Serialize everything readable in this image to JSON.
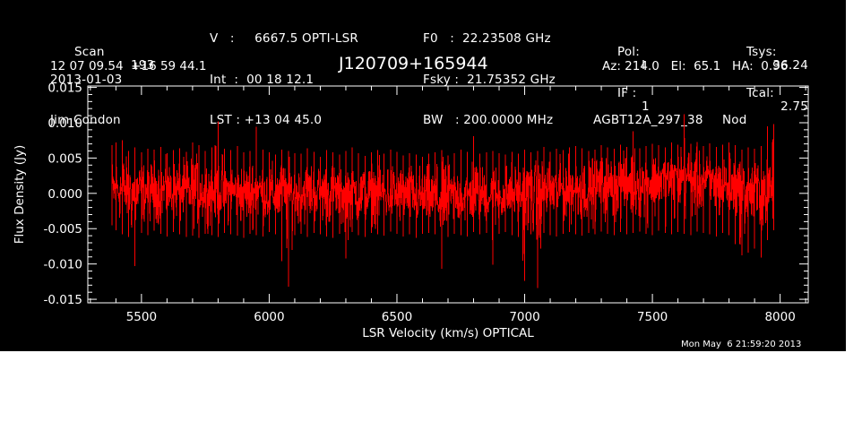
{
  "header": {
    "scan_label": "Scan",
    "scan_number": "193",
    "date": "2013-01-03",
    "observer": "Jim Condon",
    "velocity_line": "V   :     6667.5 OPTI-LSR",
    "int_line": "Int  :  00 18 12.1",
    "lst_line": "LST : +13 04 45.0",
    "f0_line": "F0   :  22.23508 GHz",
    "fsky_line": "Fsky :  21.75352 GHz",
    "bw_line": "BW   : 200.0000 MHz",
    "pol_label": "Pol:",
    "pol_value": "I",
    "if_label": "IF :",
    "if_value": "1",
    "project": "AGBT12A_297_38",
    "tsys_label": "Tsys:",
    "tsys_value": "36.24",
    "tcal_label": "Tcal:",
    "tcal_value": "2.75",
    "procedure": "Nod",
    "coordinates": "12 07 09.54  +16 59 44.1",
    "source": "J120709+165944",
    "az_el_ha": "Az: 214.0   El:  65.1   HA:  0.96",
    "timestamp": "Mon May  6 21:59:20 2013"
  },
  "colors": {
    "background": "#000000",
    "axes": "#ffffff",
    "trace": "#ff0000"
  },
  "chart_data": {
    "type": "line",
    "xlabel": "LSR Velocity (km/s) OPTICAL",
    "ylabel": "Flux Density (Jy)",
    "xlim": [
      5290,
      8110
    ],
    "ylim": [
      -0.0155,
      0.0152
    ],
    "x_ticks": [
      5500,
      6000,
      6500,
      7000,
      7500,
      8000
    ],
    "x_tick_labels": [
      "5500",
      "6000",
      "6500",
      "7000",
      "7500",
      "8000"
    ],
    "y_ticks": [
      -0.015,
      -0.01,
      -0.005,
      0.0,
      0.005,
      0.01,
      0.015
    ],
    "y_tick_labels": [
      "-0.015",
      "-0.010",
      "-0.005",
      "0.000",
      "0.005",
      "0.010",
      "0.015"
    ],
    "grid": false,
    "series": [
      {
        "color": "#ff0000",
        "x": [
          5385,
          5400,
          5425,
          5450,
          5475,
          5500,
          5525,
          5550,
          5575,
          5600,
          5625,
          5650,
          5675,
          5700,
          5725,
          5750,
          5775,
          5800,
          5825,
          5850,
          5875,
          5900,
          5925,
          5950,
          5975,
          6000,
          6025,
          6050,
          6075,
          6100,
          6125,
          6150,
          6175,
          6200,
          6225,
          6250,
          6275,
          6300,
          6325,
          6350,
          6375,
          6400,
          6425,
          6450,
          6475,
          6500,
          6525,
          6550,
          6575,
          6600,
          6625,
          6650,
          6675,
          6700,
          6725,
          6750,
          6775,
          6800,
          6825,
          6850,
          6875,
          6900,
          6925,
          6950,
          6975,
          7000,
          7025,
          7050,
          7075,
          7100,
          7125,
          7150,
          7175,
          7200,
          7225,
          7250,
          7275,
          7300,
          7325,
          7350,
          7375,
          7400,
          7425,
          7450,
          7475,
          7500,
          7525,
          7550,
          7575,
          7600,
          7625,
          7650,
          7675,
          7700,
          7725,
          7750,
          7775,
          7800,
          7825,
          7850,
          7875,
          7900,
          7925,
          7950,
          7975
        ],
        "upper": [
          0.0068,
          0.0072,
          0.0075,
          0.006,
          0.0065,
          0.0058,
          0.0063,
          0.0062,
          0.0066,
          0.0057,
          0.0061,
          0.0064,
          0.0059,
          0.0072,
          0.0068,
          0.006,
          0.0065,
          0.0102,
          0.0063,
          0.0061,
          0.0067,
          0.0058,
          0.006,
          0.0094,
          0.0062,
          0.0058,
          0.0055,
          0.0062,
          0.006,
          0.0057,
          0.0056,
          0.0064,
          0.0059,
          0.0052,
          0.0061,
          0.0058,
          0.0055,
          0.006,
          0.0065,
          0.0057,
          0.0053,
          0.0058,
          0.0061,
          0.0056,
          0.0062,
          0.0059,
          0.0054,
          0.0057,
          0.0055,
          0.0052,
          0.0056,
          0.0058,
          0.0061,
          0.0054,
          0.0057,
          0.0062,
          0.0059,
          0.0081,
          0.0056,
          0.0058,
          0.006,
          0.0057,
          0.0055,
          0.0059,
          0.0056,
          0.0062,
          0.0058,
          0.006,
          0.0066,
          0.0059,
          0.0063,
          0.0061,
          0.0065,
          0.0067,
          0.0064,
          0.006,
          0.0062,
          0.0068,
          0.0065,
          0.0063,
          0.0069,
          0.0066,
          0.0088,
          0.0064,
          0.0067,
          0.007,
          0.0068,
          0.0065,
          0.0072,
          0.0069,
          0.0112,
          0.007,
          0.0073,
          0.0067,
          0.0071,
          0.0066,
          0.0069,
          0.0072,
          0.0068,
          0.0062,
          0.0065,
          0.0063,
          0.0067,
          0.0095,
          0.0098
        ],
        "lower": [
          -0.0045,
          -0.0052,
          -0.0058,
          -0.0062,
          -0.0103,
          -0.0056,
          -0.0059,
          -0.0053,
          -0.0057,
          -0.0061,
          -0.0055,
          -0.0058,
          -0.0062,
          -0.006,
          -0.0063,
          -0.0057,
          -0.0059,
          -0.0062,
          -0.0056,
          -0.0058,
          -0.006,
          -0.0063,
          -0.0057,
          -0.0059,
          -0.0061,
          -0.0055,
          -0.0058,
          -0.0096,
          -0.0132,
          -0.0059,
          -0.0057,
          -0.0062,
          -0.0056,
          -0.0058,
          -0.0061,
          -0.0063,
          -0.0057,
          -0.0092,
          -0.0055,
          -0.0059,
          -0.0062,
          -0.0056,
          -0.0058,
          -0.006,
          -0.0054,
          -0.0057,
          -0.0061,
          -0.0058,
          -0.0063,
          -0.0057,
          -0.0056,
          -0.0058,
          -0.0107,
          -0.0062,
          -0.0057,
          -0.0059,
          -0.0061,
          -0.0055,
          -0.0058,
          -0.0056,
          -0.0101,
          -0.0057,
          -0.0055,
          -0.0059,
          -0.0062,
          -0.0124,
          -0.0058,
          -0.0134,
          -0.0056,
          -0.0059,
          -0.0061,
          -0.0057,
          -0.0055,
          -0.0058,
          -0.006,
          -0.0056,
          -0.0058,
          -0.0054,
          -0.0057,
          -0.0059,
          -0.0055,
          -0.0058,
          -0.0056,
          -0.0054,
          -0.0057,
          -0.0059,
          -0.0053,
          -0.0056,
          -0.0058,
          -0.0055,
          -0.0057,
          -0.0059,
          -0.0054,
          -0.0056,
          -0.0058,
          -0.0061,
          -0.0056,
          -0.0059,
          -0.0072,
          -0.0088,
          -0.0084,
          -0.0078,
          -0.0091,
          -0.0066,
          -0.0052
        ],
        "baseline": [
          0.0,
          0.0005,
          0.0006,
          0.0004,
          0.0003,
          0.0004,
          0.0005,
          0.0004,
          0.0006,
          0.0003,
          0.0002,
          0.0004,
          0.0003,
          0.0005,
          0.0006,
          0.0004,
          0.0003,
          0.0005,
          0.0004,
          0.0002,
          0.0003,
          0.0001,
          0.0003,
          0.0002,
          0.0001,
          -0.0002,
          -0.0001,
          0.0001,
          0.0002,
          0.0,
          0.0001,
          0.0002,
          0.0003,
          0.0001,
          0.0,
          -0.0001,
          0.0001,
          0.0002,
          0.0,
          -0.0001,
          -0.0002,
          -0.0001,
          0.0,
          -0.0002,
          -0.0001,
          -0.0003,
          -0.0002,
          -0.0004,
          -0.0005,
          -0.0006,
          -0.0008,
          -0.0009,
          -0.0007,
          -0.0006,
          -0.0008,
          -0.0007,
          -0.0005,
          -0.0003,
          -0.0002,
          -0.0001,
          -0.0002,
          -0.0003,
          -0.0001,
          0.0,
          0.0001,
          0.0002,
          0.0003,
          0.0004,
          0.0003,
          0.0005,
          0.0006,
          0.0007,
          0.0009,
          0.001,
          0.0011,
          0.001,
          0.0012,
          0.0014,
          0.0013,
          0.0015,
          0.0016,
          0.0018,
          0.0017,
          0.0016,
          0.0018,
          0.0019,
          0.0021,
          0.0022,
          0.0023,
          0.0025,
          0.0024,
          0.0023,
          0.0021,
          0.002,
          0.0018,
          0.0016,
          0.0014,
          0.0012,
          0.001,
          0.0008,
          0.0006,
          0.0004,
          0.0003,
          0.0002,
          0.0004
        ]
      }
    ]
  }
}
